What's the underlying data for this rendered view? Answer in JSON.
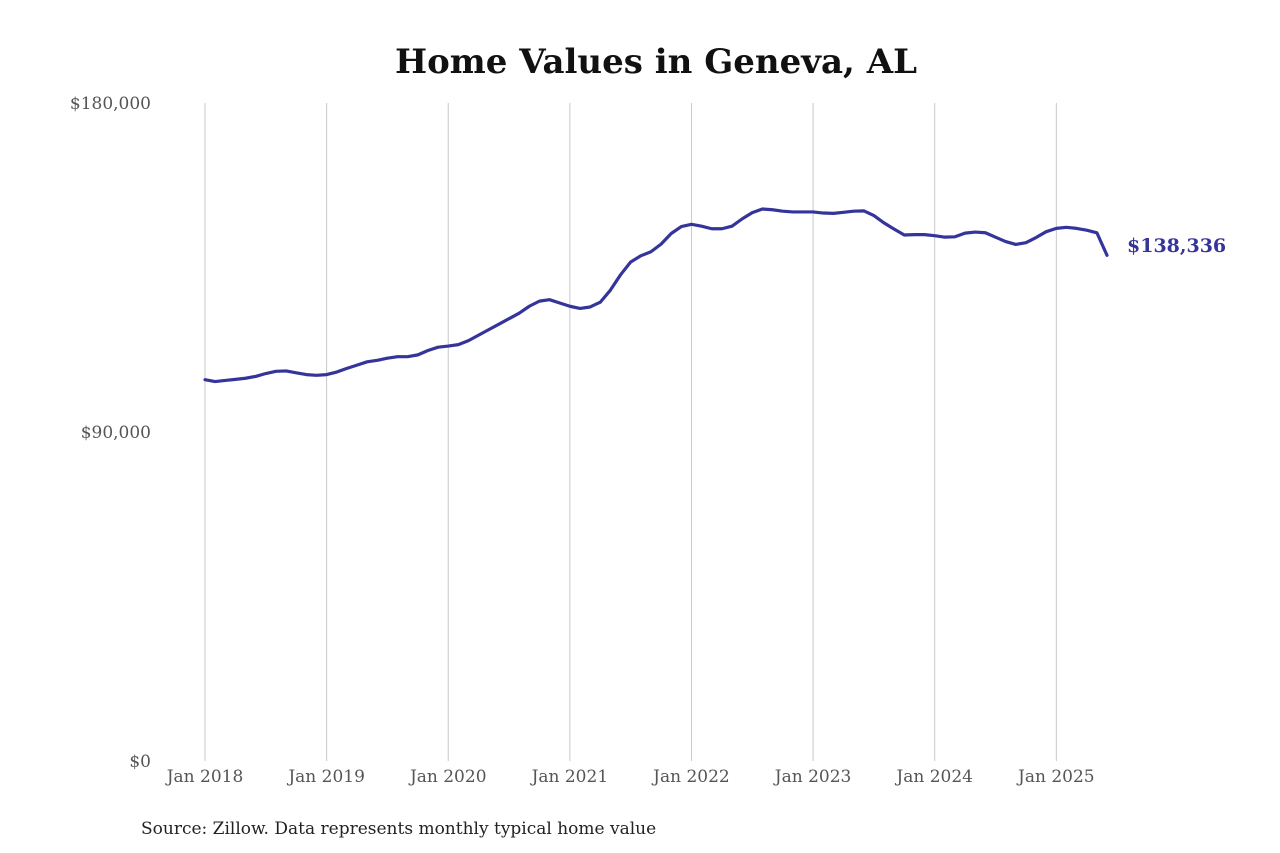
{
  "colors": {
    "series": "#35349a",
    "grid": "#c8c8c8",
    "tick_text": "#555555"
  },
  "chart_data": {
    "type": "line",
    "title": "Home Values in Geneva, AL",
    "xlabel": "",
    "ylabel": "",
    "source": "Source: Zillow. Data represents monthly typical home value",
    "ylim": [
      0,
      180000
    ],
    "y_ticks": [
      0,
      90000,
      180000
    ],
    "y_tick_labels": [
      "$0",
      "$90,000",
      "$180,000"
    ],
    "x_range": [
      "2018-01",
      "2025-06"
    ],
    "x_ticks": [
      "2018-01",
      "2019-01",
      "2020-01",
      "2021-01",
      "2022-01",
      "2023-01",
      "2024-01",
      "2025-01"
    ],
    "x_tick_labels": [
      "Jan 2018",
      "Jan 2019",
      "Jan 2020",
      "Jan 2021",
      "Jan 2022",
      "Jan 2023",
      "Jan 2024",
      "Jan 2025"
    ],
    "grid": "vertical",
    "legend": "none",
    "end_label": "$138,336",
    "series": [
      {
        "x": [
          "2018-01",
          "2018-02",
          "2018-03",
          "2018-04",
          "2018-05",
          "2018-06",
          "2018-07",
          "2018-08",
          "2018-09",
          "2018-10",
          "2018-11",
          "2018-12",
          "2019-01",
          "2019-02",
          "2019-03",
          "2019-04",
          "2019-05",
          "2019-06",
          "2019-07",
          "2019-08",
          "2019-09",
          "2019-10",
          "2019-11",
          "2019-12",
          "2020-01",
          "2020-02",
          "2020-03",
          "2020-04",
          "2020-05",
          "2020-06",
          "2020-07",
          "2020-08",
          "2020-09",
          "2020-10",
          "2020-11",
          "2020-12",
          "2021-01",
          "2021-02",
          "2021-03",
          "2021-04",
          "2021-05",
          "2021-06",
          "2021-07",
          "2021-08",
          "2021-09",
          "2021-10",
          "2021-11",
          "2021-12",
          "2022-01",
          "2022-02",
          "2022-03",
          "2022-04",
          "2022-05",
          "2022-06",
          "2022-07",
          "2022-08",
          "2022-09",
          "2022-10",
          "2022-11",
          "2022-12",
          "2023-01",
          "2023-02",
          "2023-03",
          "2023-04",
          "2023-05",
          "2023-06",
          "2023-07",
          "2023-08",
          "2023-09",
          "2023-10",
          "2023-11",
          "2023-12",
          "2024-01",
          "2024-02",
          "2024-03",
          "2024-04",
          "2024-05",
          "2024-06",
          "2024-07",
          "2024-08",
          "2024-09",
          "2024-10",
          "2024-11",
          "2024-12",
          "2025-01",
          "2025-02",
          "2025-03",
          "2025-04",
          "2025-05",
          "2025-06"
        ],
        "values": [
          104300,
          103800,
          104100,
          104400,
          104700,
          105200,
          106000,
          106600,
          106700,
          106200,
          105700,
          105500,
          105700,
          106400,
          107400,
          108300,
          109200,
          109600,
          110200,
          110600,
          110600,
          111100,
          112300,
          113200,
          113500,
          113900,
          115000,
          116500,
          118000,
          119500,
          121000,
          122500,
          124400,
          125800,
          126200,
          125300,
          124400,
          123800,
          124200,
          125500,
          128800,
          133000,
          136500,
          138200,
          139300,
          141400,
          144300,
          146200,
          146800,
          146300,
          145600,
          145600,
          146300,
          148300,
          150000,
          151000,
          150800,
          150400,
          150200,
          150200,
          150200,
          149900,
          149800,
          150100,
          150400,
          150500,
          149200,
          147200,
          145500,
          143900,
          144000,
          144000,
          143700,
          143300,
          143400,
          144400,
          144700,
          144500,
          143300,
          142100,
          141300,
          141800,
          143200,
          144800,
          145700,
          146000,
          145700,
          145200,
          144500,
          138336
        ]
      }
    ]
  }
}
